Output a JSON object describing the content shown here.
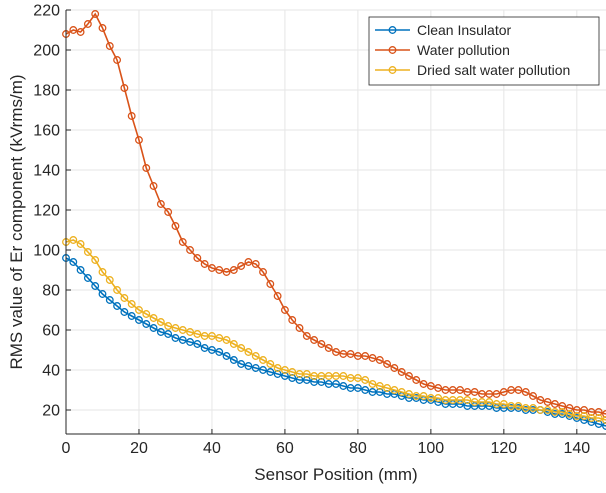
{
  "chart_data": {
    "type": "line",
    "title": "",
    "xlabel": "Sensor Position (mm)",
    "ylabel": "RMS value of Er component (kVrms/m)",
    "xlim": [
      0,
      148
    ],
    "ylim": [
      8,
      220
    ],
    "xticks": [
      0,
      20,
      40,
      60,
      80,
      100,
      120,
      140
    ],
    "yticks": [
      20,
      40,
      60,
      80,
      100,
      120,
      140,
      160,
      180,
      200,
      220
    ],
    "grid": true,
    "legend_position": "top-right",
    "marker": "circle",
    "x": [
      0,
      2,
      4,
      6,
      8,
      10,
      12,
      14,
      16,
      18,
      20,
      22,
      24,
      26,
      28,
      30,
      32,
      34,
      36,
      38,
      40,
      42,
      44,
      46,
      48,
      50,
      52,
      54,
      56,
      58,
      60,
      62,
      64,
      66,
      68,
      70,
      72,
      74,
      76,
      78,
      80,
      82,
      84,
      86,
      88,
      90,
      92,
      94,
      96,
      98,
      100,
      102,
      104,
      106,
      108,
      110,
      112,
      114,
      116,
      118,
      120,
      122,
      124,
      126,
      128,
      130,
      132,
      134,
      136,
      138,
      140,
      142,
      144,
      146,
      148
    ],
    "series": [
      {
        "name": "Clean Insulator",
        "color": "#0072BD",
        "values": [
          96,
          94,
          90,
          86,
          82,
          78,
          75,
          72,
          69,
          67,
          65,
          63,
          61,
          59,
          58,
          56,
          55,
          54,
          53,
          51,
          50,
          49,
          47,
          45,
          43,
          42,
          41,
          40,
          39,
          38,
          37,
          36,
          35,
          35,
          34,
          34,
          33,
          33,
          32,
          31,
          31,
          30,
          29,
          29,
          28,
          28,
          27,
          26,
          26,
          25,
          25,
          24,
          23,
          23,
          23,
          22,
          22,
          22,
          22,
          21,
          21,
          21,
          21,
          20,
          20,
          20,
          19,
          18,
          18,
          17,
          16,
          15,
          14,
          13,
          12
        ]
      },
      {
        "name": "Water pollution",
        "color": "#D95319",
        "values": [
          208,
          210,
          209,
          213,
          218,
          211,
          202,
          195,
          181,
          167,
          155,
          141,
          132,
          123,
          119,
          112,
          104,
          100,
          96,
          93,
          91,
          90,
          89,
          90,
          92,
          94,
          93,
          89,
          83,
          77,
          70,
          65,
          61,
          57,
          55,
          53,
          51,
          49,
          48,
          48,
          47,
          47,
          46,
          45,
          43,
          41,
          39,
          37,
          35,
          33,
          32,
          31,
          30,
          30,
          30,
          29,
          29,
          28,
          28,
          28,
          29,
          30,
          30,
          29,
          27,
          25,
          24,
          23,
          22,
          21,
          20,
          20,
          19,
          19,
          18
        ]
      },
      {
        "name": "Dried salt water pollution",
        "color": "#EDB120",
        "values": [
          104,
          105,
          103,
          99,
          95,
          89,
          85,
          80,
          76,
          73,
          70,
          68,
          66,
          64,
          62,
          61,
          60,
          59,
          58,
          57,
          57,
          56,
          55,
          53,
          51,
          49,
          47,
          45,
          43,
          41,
          40,
          39,
          38,
          38,
          37,
          37,
          37,
          37,
          37,
          36,
          36,
          35,
          33,
          32,
          31,
          30,
          29,
          28,
          27,
          27,
          26,
          26,
          25,
          25,
          25,
          25,
          24,
          24,
          24,
          23,
          23,
          22,
          22,
          21,
          21,
          20,
          20,
          19,
          19,
          18,
          17,
          17,
          16,
          16,
          15
        ]
      }
    ]
  }
}
